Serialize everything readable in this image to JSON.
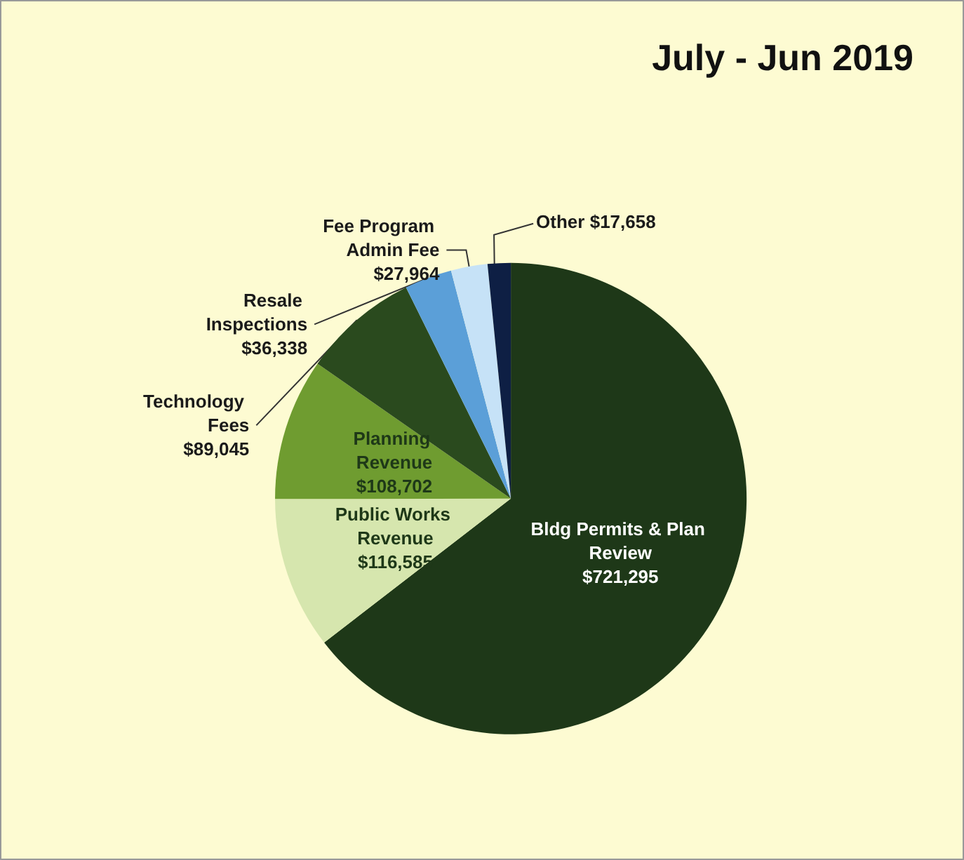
{
  "chart_data": {
    "type": "pie",
    "title": "July - Jun 2019",
    "categories": [
      "Bldg Permits & Plan Review",
      "Public Works Revenue",
      "Planning Revenue",
      "Technology Fees",
      "Resale Inspections",
      "Fee Program Admin Fee",
      "Other"
    ],
    "values": [
      721295,
      116585,
      108702,
      89045,
      36338,
      27964,
      17658
    ],
    "value_labels": [
      "$721,295",
      "$116,585",
      "$108,702",
      "$89,045",
      "$36,338",
      "$27,964",
      "$17,658"
    ],
    "colors": [
      "#1e3818",
      "#d6e6ae",
      "#6f9c30",
      "#2a4a1e",
      "#5b9fd8",
      "#c6e2f7",
      "#0e1f44"
    ],
    "legend": false
  }
}
